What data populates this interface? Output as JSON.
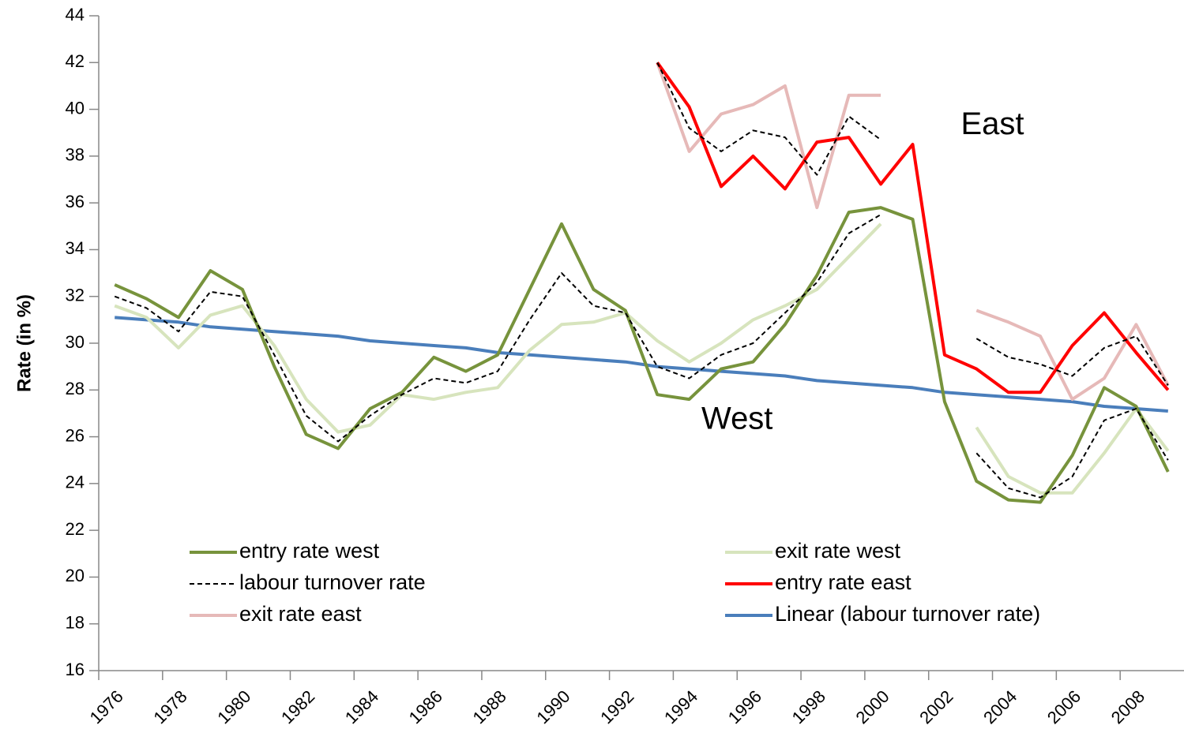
{
  "chart_data": {
    "type": "line",
    "y_axis_label": "Rate (in %)",
    "categories": [
      "1976",
      null,
      "1978",
      null,
      "1980",
      null,
      "1982",
      null,
      "1984",
      null,
      "1986",
      null,
      "1988",
      null,
      "1990",
      null,
      "1992",
      null,
      "1994",
      null,
      "1996",
      null,
      "1998",
      null,
      "2000",
      null,
      "2002",
      null,
      "2004",
      null,
      "2006",
      null,
      "2008",
      null
    ],
    "ylim": [
      16,
      44
    ],
    "yticks": [
      16,
      18,
      20,
      22,
      24,
      26,
      28,
      30,
      32,
      34,
      36,
      38,
      40,
      42,
      44
    ],
    "grid": false,
    "annotations": [
      {
        "text": "East",
        "x": 2003.5,
        "y": 39.3
      },
      {
        "text": "West",
        "x": 1995.5,
        "y": 26.7
      }
    ],
    "series": [
      {
        "name": "entry rate west",
        "color": "#77933c",
        "width": 4,
        "values": [
          32.5,
          31.9,
          31.1,
          33.1,
          32.3,
          29.0,
          26.1,
          25.5,
          27.2,
          27.9,
          29.4,
          28.8,
          29.5,
          32.3,
          35.1,
          32.3,
          31.4,
          27.8,
          27.6,
          28.9,
          29.2,
          30.8,
          32.9,
          35.6,
          35.8,
          35.3,
          27.5,
          24.1,
          23.3,
          23.2,
          25.2,
          28.1,
          27.3,
          24.5
        ]
      },
      {
        "name": "exit rate west",
        "color": "#d7e4bd",
        "width": 4,
        "values": [
          31.6,
          31.1,
          29.8,
          31.2,
          31.6,
          29.9,
          27.6,
          26.2,
          26.5,
          27.8,
          27.6,
          27.9,
          28.1,
          29.7,
          30.8,
          30.9,
          31.3,
          30.1,
          29.2,
          30.0,
          31.0,
          31.6,
          32.3,
          33.7,
          35.1,
          null,
          null,
          26.4,
          24.3,
          23.6,
          23.6,
          25.3,
          27.2,
          25.4
        ]
      },
      {
        "name": "labour turnover rate",
        "color": "#000000",
        "width": 2,
        "dash": true,
        "values": [
          32.0,
          31.5,
          30.5,
          32.2,
          32.0,
          29.5,
          26.9,
          25.8,
          26.9,
          27.8,
          28.5,
          28.3,
          28.8,
          31.0,
          33.0,
          31.6,
          31.3,
          29.0,
          28.5,
          29.5,
          30.0,
          31.3,
          32.6,
          34.7,
          35.5,
          null,
          null,
          25.3,
          23.8,
          23.4,
          24.3,
          26.7,
          27.2,
          25.0
        ]
      },
      {
        "name": "entry rate east",
        "color": "#ff0000",
        "width": 4,
        "values": [
          null,
          null,
          null,
          null,
          null,
          null,
          null,
          null,
          null,
          null,
          null,
          null,
          null,
          null,
          null,
          null,
          null,
          42.0,
          40.1,
          36.7,
          38.0,
          36.6,
          38.6,
          38.8,
          36.8,
          38.5,
          29.5,
          28.9,
          27.9,
          27.9,
          29.9,
          31.3,
          29.6,
          28.0
        ]
      },
      {
        "name": "exit rate east",
        "color": "#e6b9b8",
        "width": 4,
        "values": [
          null,
          null,
          null,
          null,
          null,
          null,
          null,
          null,
          null,
          null,
          null,
          null,
          null,
          null,
          null,
          null,
          null,
          42.0,
          38.2,
          39.8,
          40.2,
          41.0,
          35.8,
          40.6,
          40.6,
          null,
          null,
          31.4,
          30.9,
          30.3,
          27.6,
          28.5,
          30.8,
          28.2
        ]
      },
      {
        "name": "Linear (labour turnover rate)",
        "color": "#4a7ebb",
        "width": 4,
        "values": [
          31.1,
          31.0,
          30.9,
          30.7,
          30.6,
          30.5,
          30.4,
          30.3,
          30.1,
          30.0,
          29.9,
          29.8,
          29.6,
          29.5,
          29.4,
          29.3,
          29.2,
          29.0,
          28.9,
          28.8,
          28.7,
          28.6,
          28.4,
          28.3,
          28.2,
          28.1,
          27.9,
          27.8,
          27.7,
          27.6,
          27.5,
          27.3,
          27.2,
          27.1
        ]
      },
      {
        "color": "#000000",
        "width": 2,
        "dash": true,
        "values": [
          null,
          null,
          null,
          null,
          null,
          null,
          null,
          null,
          null,
          null,
          null,
          null,
          null,
          null,
          null,
          null,
          null,
          42.0,
          39.2,
          38.2,
          39.1,
          38.8,
          37.2,
          39.7,
          38.7,
          null,
          null,
          30.2,
          29.4,
          29.1,
          28.6,
          29.8,
          30.3,
          28.2
        ]
      }
    ]
  }
}
